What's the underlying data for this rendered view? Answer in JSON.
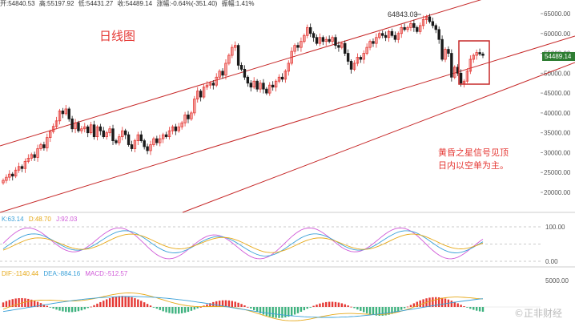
{
  "header": {
    "open": "开:54840.53",
    "high": "高:55197.92",
    "low": "低:54431.27",
    "close": "收:54489.14",
    "change": "涨幅:-0.64%(-351.40)",
    "amplitude": "振幅:1.41%"
  },
  "kdj": {
    "k": "K:63.14",
    "d": "D:48.70",
    "j": "J:92.03"
  },
  "macd": {
    "dif": "DIF:-1140.44",
    "dea": "DEA:-884.16",
    "macd": "MACD:-512.57"
  },
  "annotations": {
    "title": "日线图",
    "note_line1": "黄昏之星信号见顶",
    "note_line2": "日内以空单为主。",
    "peak_label": "64843.03",
    "price_tag": "54489.14",
    "watermark": "©正非财经"
  },
  "colors": {
    "up": "#e53935",
    "down": "#1a1a1a",
    "k": "#3aa0d8",
    "d": "#e6a817",
    "j": "#d05ad8",
    "dif": "#e6a817",
    "dea": "#3aa0d8",
    "macd_down": "#3fb27f"
  },
  "chart_data": {
    "type": "candlestick",
    "price_axis": {
      "ticks": [
        20000,
        25000,
        30000,
        35000,
        40000,
        45000,
        50000,
        55000,
        60000,
        65000
      ],
      "tick_labels": [
        "20000.00",
        "25000.00",
        "30000.00",
        "35000.00",
        "40000.00",
        "45000.00",
        "50000.00",
        "55000.00",
        "60000.00",
        "65000.00"
      ]
    },
    "kdj_axis": {
      "ticks": [
        0,
        50,
        100
      ],
      "tick_labels": [
        "0.00",
        "",
        "100.00"
      ]
    },
    "macd_axis": {
      "ticks": [
        5000
      ],
      "tick_labels": [
        "5000.00"
      ]
    },
    "closes": [
      23000,
      23800,
      24600,
      24100,
      25600,
      26500,
      26000,
      27800,
      28600,
      29500,
      28800,
      31000,
      32000,
      31200,
      33800,
      35300,
      36600,
      38000,
      40500,
      39800,
      41000,
      38500,
      36000,
      37500,
      35500,
      36000,
      36500,
      35000,
      37000,
      34000,
      36500,
      35500,
      34000,
      35000,
      36000,
      33000,
      32500,
      34000,
      35500,
      34500,
      32000,
      31000,
      33000,
      34500,
      33000,
      31500,
      30500,
      32000,
      33500,
      32500,
      33500,
      34500,
      34000,
      35500,
      36500,
      35500,
      36500,
      37500,
      39500,
      38500,
      40000,
      43500,
      45500,
      44000,
      46500,
      47000,
      47500,
      47000,
      49000,
      50500,
      49500,
      52500,
      54500,
      56500,
      57000,
      52000,
      51000,
      49000,
      47500,
      46500,
      48000,
      46000,
      47500,
      46000,
      45000,
      47000,
      46500,
      48000,
      49000,
      48500,
      50500,
      52500,
      55500,
      57000,
      56500,
      58000,
      59500,
      61500,
      60000,
      59000,
      57500,
      59000,
      58000,
      58500,
      58000,
      59000,
      57000,
      56500,
      57500,
      55000,
      53000,
      51000,
      52500,
      54000,
      53500,
      55000,
      56500,
      58000,
      57500,
      59000,
      60000,
      59500,
      59000,
      60500,
      59500,
      58500,
      60000,
      61500,
      61000,
      61500,
      62500,
      61500,
      60500,
      62000,
      63500,
      64200,
      63000,
      62000,
      61000,
      58500,
      53500,
      56000,
      55000,
      49000,
      51500,
      50000,
      47500,
      48000,
      50500,
      53500,
      54500,
      55200,
      54840,
      54489
    ],
    "markers": {
      "peak_value": 64843.03
    }
  }
}
